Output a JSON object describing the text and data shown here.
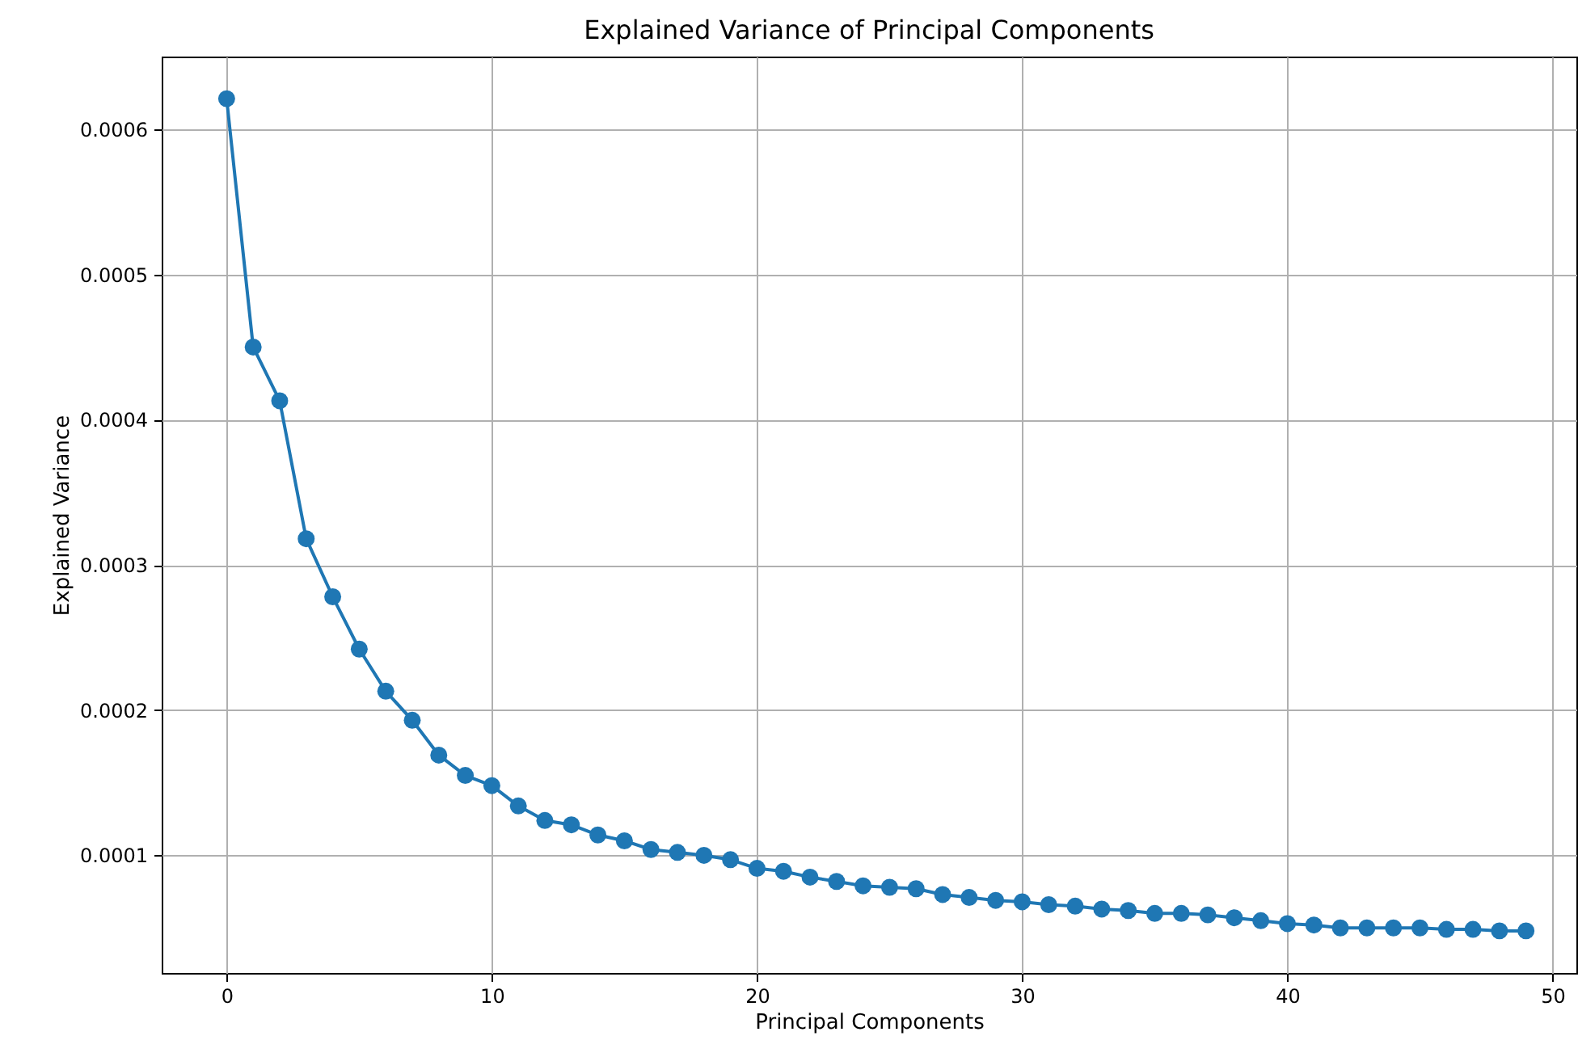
{
  "chart_data": {
    "type": "line",
    "title": "Explained Variance of Principal Components",
    "xlabel": "Principal Components",
    "ylabel": "Explained Variance",
    "x": [
      0,
      1,
      2,
      3,
      4,
      5,
      6,
      7,
      8,
      9,
      10,
      11,
      12,
      13,
      14,
      15,
      16,
      17,
      18,
      19,
      20,
      21,
      22,
      23,
      24,
      25,
      26,
      27,
      28,
      29,
      30,
      31,
      32,
      33,
      34,
      35,
      36,
      37,
      38,
      39,
      40,
      41,
      42,
      43,
      44,
      45,
      46,
      47,
      48,
      49
    ],
    "series": [
      {
        "color": "#1f77b4",
        "values": [
          0.000621,
          0.00045,
          0.000413,
          0.000318,
          0.000278,
          0.000242,
          0.000213,
          0.000193,
          0.000169,
          0.000155,
          0.000148,
          0.000134,
          0.000124,
          0.000121,
          0.000114,
          0.00011,
          0.000104,
          0.000102,
          0.0001,
          9.7e-05,
          9.1e-05,
          8.9e-05,
          8.5e-05,
          8.2e-05,
          7.9e-05,
          7.8e-05,
          7.7e-05,
          7.3e-05,
          7.1e-05,
          6.9e-05,
          6.8e-05,
          6.6e-05,
          6.5e-05,
          6.3e-05,
          6.2e-05,
          6e-05,
          6e-05,
          5.9e-05,
          5.7e-05,
          5.5e-05,
          5.3e-05,
          5.2e-05,
          5e-05,
          5e-05,
          5e-05,
          5e-05,
          4.9e-05,
          4.9e-05,
          4.8e-05,
          4.8e-05
        ]
      }
    ],
    "xlim": [
      -2.45,
      50.9
    ],
    "xticks": [
      0,
      10,
      20,
      30,
      40,
      50
    ],
    "ylim": [
      1.9e-05,
      0.00065
    ],
    "yticks": [
      0.0001,
      0.0002,
      0.0003,
      0.0004,
      0.0005,
      0.0006
    ],
    "grid": true,
    "marker": "circle",
    "line_style": "solid"
  }
}
